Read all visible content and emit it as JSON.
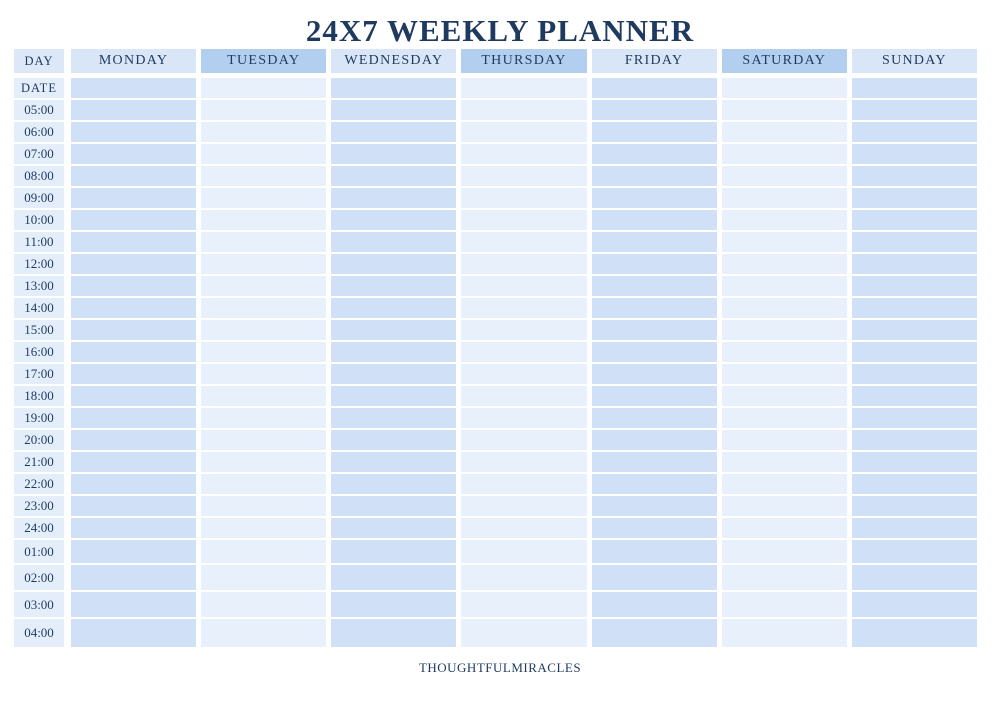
{
  "title": "24X7 WEEKLY PLANNER",
  "header": {
    "day_column_label": "DAY",
    "days": [
      "MONDAY",
      "TUESDAY",
      "WEDNESDAY",
      "THURSDAY",
      "FRIDAY",
      "SATURDAY",
      "SUNDAY"
    ]
  },
  "time_column": {
    "date_label": "DATE",
    "times": [
      "05:00",
      "06:00",
      "07:00",
      "08:00",
      "09:00",
      "10:00",
      "11:00",
      "12:00",
      "13:00",
      "14:00",
      "15:00",
      "16:00",
      "17:00",
      "18:00",
      "19:00",
      "20:00",
      "21:00",
      "22:00",
      "23:00",
      "24:00",
      "01:00",
      "02:00",
      "03:00",
      "04:00"
    ]
  },
  "footer": {
    "brand": "THOUGHTFULMIRACLES"
  },
  "colors": {
    "text_navy": "#1f3a5f",
    "header_light": "#d9e6f8",
    "header_dark": "#b3cff0",
    "body_dark": "#cfe0f7",
    "body_light": "#e8f0fb",
    "time_column_bg": "#e4eefb",
    "day_corner_bg": "#dce8f7",
    "separator_white": "#ffffff",
    "page_bg": "#ffffff"
  }
}
